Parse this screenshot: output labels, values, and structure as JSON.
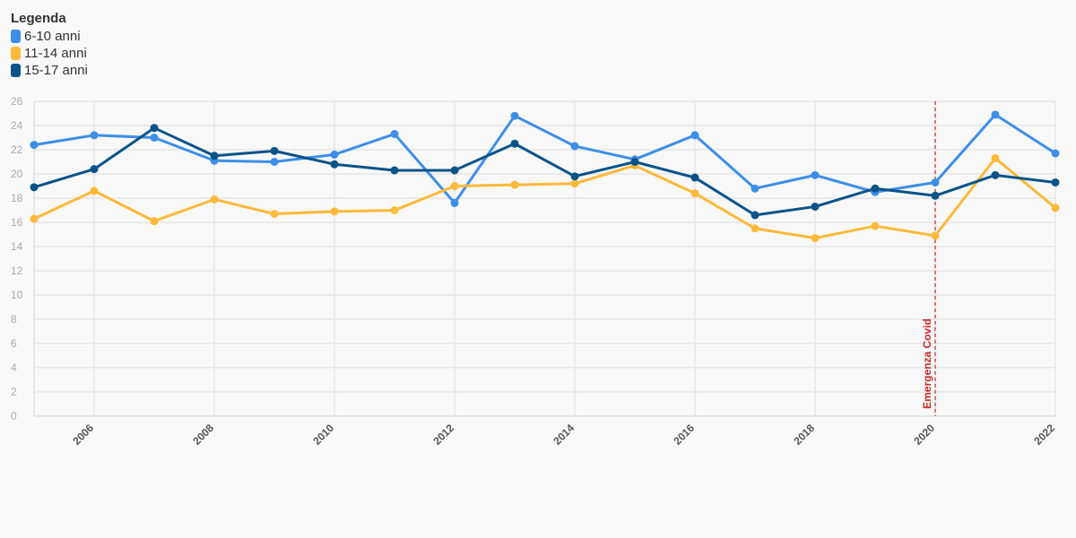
{
  "chart_data": {
    "type": "line",
    "title": "",
    "xlabel": "",
    "ylabel": "",
    "legend_title": "Legenda",
    "legend_position": "top-left",
    "grid": true,
    "x": [
      2005,
      2006,
      2007,
      2008,
      2009,
      2010,
      2011,
      2012,
      2013,
      2014,
      2015,
      2016,
      2017,
      2018,
      2019,
      2020,
      2021,
      2022
    ],
    "xticks": [
      2006,
      2008,
      2010,
      2012,
      2014,
      2016,
      2018,
      2020,
      2022
    ],
    "ylim": [
      0,
      26
    ],
    "yticks": [
      0,
      2,
      4,
      6,
      8,
      10,
      12,
      14,
      16,
      18,
      20,
      22,
      24,
      26
    ],
    "series": [
      {
        "name": "6-10 anni",
        "color": "#3d8ee8",
        "values": [
          22.4,
          23.2,
          23.0,
          21.1,
          21.0,
          21.6,
          23.3,
          17.6,
          24.8,
          22.3,
          21.2,
          23.2,
          18.8,
          19.9,
          18.5,
          19.3,
          24.9,
          21.7
        ]
      },
      {
        "name": "11-14 anni",
        "color": "#fdb93a",
        "values": [
          16.3,
          18.6,
          16.1,
          17.9,
          16.7,
          16.9,
          17.0,
          19.0,
          19.1,
          19.2,
          20.7,
          18.4,
          15.5,
          14.7,
          15.7,
          14.9,
          21.3,
          17.2
        ]
      },
      {
        "name": "15-17 anni",
        "color": "#0a5389",
        "values": [
          18.9,
          20.4,
          23.8,
          21.5,
          21.9,
          20.8,
          20.3,
          20.3,
          22.5,
          19.8,
          21.0,
          19.7,
          16.6,
          17.3,
          18.8,
          18.2,
          19.9,
          19.3
        ]
      }
    ],
    "annotations": [
      {
        "x": 2020,
        "label": "Emergenza Covid",
        "color": "#c62828",
        "style": "dashed"
      }
    ]
  }
}
